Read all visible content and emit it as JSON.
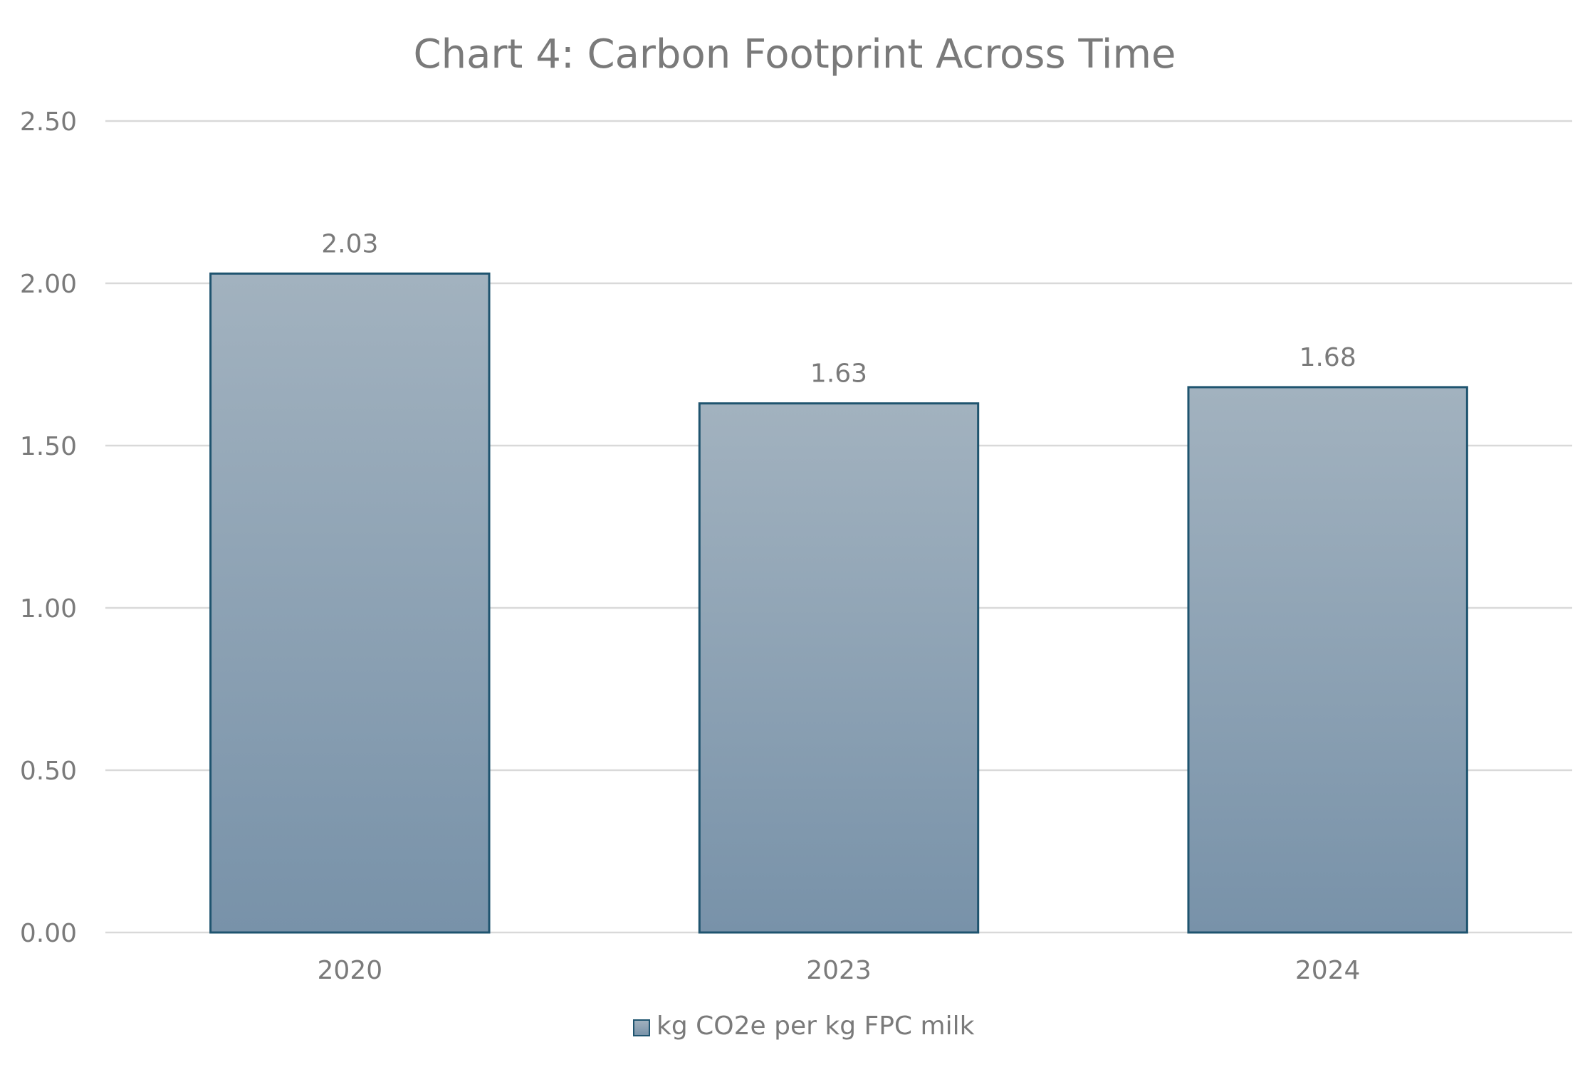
{
  "chart_data": {
    "type": "bar",
    "title": "Chart 4: Carbon Footprint Across Time",
    "categories": [
      "2020",
      "2023",
      "2024"
    ],
    "series": [
      {
        "name": "kg CO2e per kg FPC milk",
        "values": [
          2.03,
          1.63,
          1.68
        ]
      }
    ],
    "data_labels": [
      "2.03",
      "1.63",
      "1.68"
    ],
    "y_ticks": [
      "0.00",
      "0.50",
      "1.00",
      "1.50",
      "2.00",
      "2.50"
    ],
    "ylim": [
      0,
      2.5
    ],
    "grid": true,
    "legend": "bottom",
    "colors": {
      "bar_top": "#A2B2BF",
      "bar_bottom": "#7892A9",
      "bar_border": "#1F546F",
      "gridline": "#D9D9D9",
      "text": "#7A7A7A"
    }
  }
}
